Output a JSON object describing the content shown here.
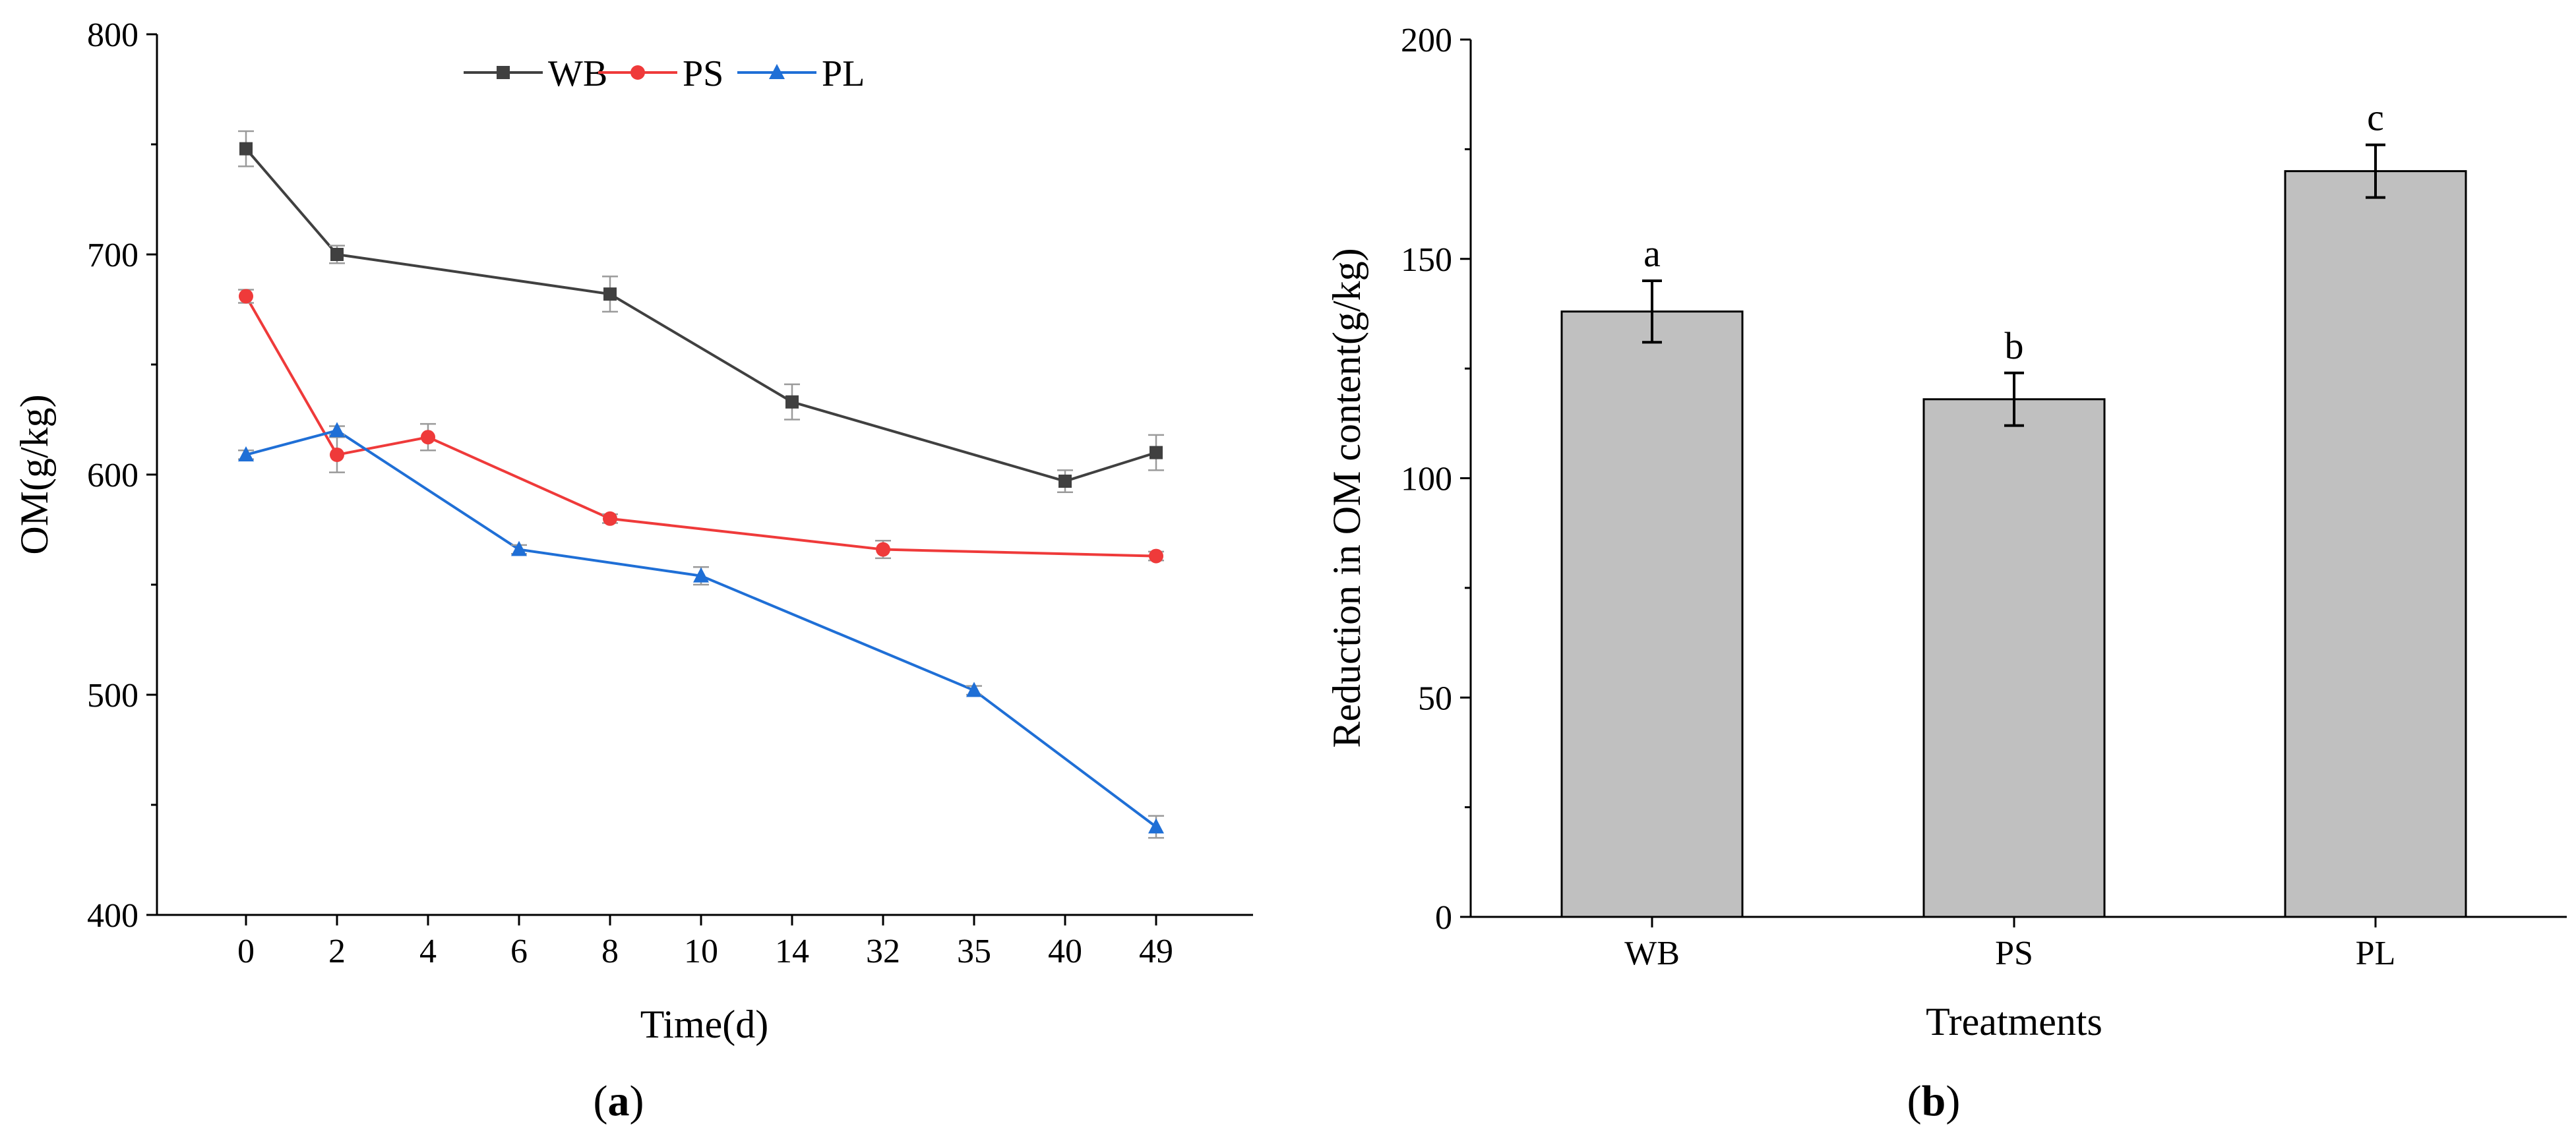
{
  "chart_data": [
    {
      "type": "line",
      "x_categories": [
        "0",
        "2",
        "4",
        "6",
        "8",
        "10",
        "14",
        "32",
        "35",
        "40",
        "49"
      ],
      "xlabel": "Time(d)",
      "ylabel": "OM(g/kg)",
      "ylim": [
        400,
        800
      ],
      "yticks": [
        "400",
        "500",
        "600",
        "700",
        "800"
      ],
      "legend_position": "top",
      "panel_label": {
        "open": "(",
        "letter": "a",
        "close": ")"
      },
      "series": [
        {
          "name": "WB",
          "color": "#404040",
          "marker": "square",
          "points": [
            {
              "x": "0",
              "y": 748,
              "err": 8
            },
            {
              "x": "2",
              "y": 700,
              "err": 4
            },
            {
              "x": "8",
              "y": 682,
              "err": 8
            },
            {
              "x": "14",
              "y": 633,
              "err": 8
            },
            {
              "x": "40",
              "y": 597,
              "err": 5
            },
            {
              "x": "49",
              "y": 610,
              "err": 8
            }
          ]
        },
        {
          "name": "PS",
          "color": "#ef3a3a",
          "marker": "circle",
          "points": [
            {
              "x": "0",
              "y": 681,
              "err": 3
            },
            {
              "x": "2",
              "y": 609,
              "err": 8
            },
            {
              "x": "4",
              "y": 617,
              "err": 6
            },
            {
              "x": "8",
              "y": 580,
              "err": 2
            },
            {
              "x": "32",
              "y": 566,
              "err": 4
            },
            {
              "x": "49",
              "y": 563,
              "err": 2
            }
          ]
        },
        {
          "name": "PL",
          "color": "#1f6fd6",
          "marker": "triangle",
          "points": [
            {
              "x": "0",
              "y": 609,
              "err": 2
            },
            {
              "x": "2",
              "y": 620,
              "err": 2
            },
            {
              "x": "6",
              "y": 566,
              "err": 2
            },
            {
              "x": "10",
              "y": 554,
              "err": 4
            },
            {
              "x": "35",
              "y": 502,
              "err": 2
            },
            {
              "x": "49",
              "y": 440,
              "err": 5
            }
          ]
        }
      ]
    },
    {
      "type": "bar",
      "categories": [
        "WB",
        "PS",
        "PL"
      ],
      "values": [
        138,
        118,
        170
      ],
      "errors": [
        7,
        6,
        6
      ],
      "letters": [
        "a",
        "b",
        "c"
      ],
      "bar_color": "#c0c0c0",
      "xlabel": "Treatments",
      "ylabel": "Reduction in OM content(g/kg)",
      "ylim": [
        0,
        200
      ],
      "yticks": [
        "0",
        "50",
        "100",
        "150",
        "200"
      ],
      "panel_label": {
        "open": "(",
        "letter": "b",
        "close": ")"
      }
    }
  ]
}
